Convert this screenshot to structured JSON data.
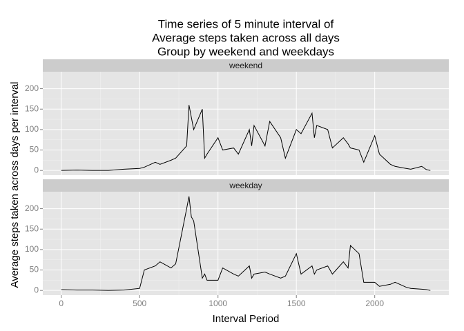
{
  "chart_data": {
    "type": "line",
    "title": [
      "Time series of 5 minute interval of",
      "Average steps taken across all days",
      "Group by weekend and weekdays"
    ],
    "x_label": "Interval Period",
    "y_label": "Average steps taken across days per interval",
    "facet": true,
    "x": [
      0,
      100,
      200,
      300,
      400,
      500,
      530,
      600,
      630,
      700,
      730,
      800,
      815,
      830,
      845,
      900,
      915,
      930,
      1000,
      1030,
      1100,
      1130,
      1200,
      1215,
      1230,
      1300,
      1330,
      1400,
      1430,
      1500,
      1530,
      1600,
      1615,
      1630,
      1700,
      1730,
      1800,
      1830,
      1845,
      1900,
      1930,
      2000,
      2030,
      2100,
      2130,
      2200,
      2230,
      2300,
      2330,
      2355
    ],
    "series": [
      {
        "name": "weekend",
        "color": "#000000",
        "values": [
          0,
          1,
          0,
          0,
          3,
          5,
          8,
          20,
          15,
          25,
          30,
          60,
          160,
          130,
          100,
          150,
          30,
          40,
          80,
          50,
          55,
          40,
          100,
          60,
          110,
          60,
          120,
          80,
          30,
          100,
          90,
          140,
          80,
          110,
          100,
          55,
          80,
          65,
          55,
          50,
          20,
          85,
          40,
          15,
          10,
          5,
          3,
          10,
          2,
          0
        ]
      },
      {
        "name": "weekday",
        "color": "#000000",
        "values": [
          2,
          1,
          1,
          0,
          1,
          5,
          50,
          60,
          70,
          55,
          65,
          200,
          230,
          180,
          170,
          30,
          40,
          25,
          25,
          55,
          40,
          35,
          60,
          30,
          40,
          45,
          40,
          30,
          35,
          90,
          40,
          60,
          40,
          50,
          60,
          40,
          70,
          55,
          110,
          90,
          20,
          20,
          10,
          15,
          20,
          8,
          5,
          3,
          2,
          0
        ]
      }
    ],
    "xlim": [
      -117.75,
      2472.75
    ],
    "xticks": [
      0,
      500,
      1000,
      1500,
      2000
    ],
    "ylim": [
      -11.5,
      241.5
    ],
    "yticks": [
      0,
      50,
      100,
      150,
      200
    ],
    "grid": true
  }
}
